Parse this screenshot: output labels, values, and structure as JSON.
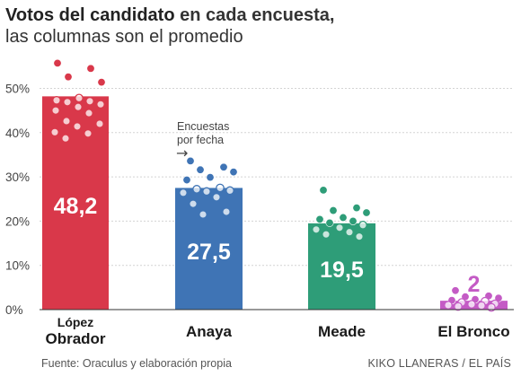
{
  "header": {
    "title_bold": "Votos del candidato",
    "title_rest": " en cada encuesta,",
    "subtitle": "las columnas son el promedio"
  },
  "annotation": {
    "line1": "Encuestas",
    "line2": "por fecha",
    "arrow": "→"
  },
  "footer": {
    "source": "Fuente: Oraculus y elaboración propia",
    "credit": "KIKO LLANERAS / EL PAÍS"
  },
  "chart_data": {
    "type": "bar",
    "title": "Votos del candidato en cada encuesta, las columnas son el promedio",
    "ylim": [
      0,
      55
    ],
    "yticks": [
      0,
      10,
      20,
      30,
      40,
      50
    ],
    "ytick_labels": [
      "0%",
      "10%",
      "20%",
      "30%",
      "40%",
      "50%"
    ],
    "grid": true,
    "categories": [
      "López Obrador",
      "Anaya",
      "Meade",
      "El Bronco"
    ],
    "category_labels": [
      [
        "López",
        "Obrador"
      ],
      [
        "Anaya"
      ],
      [
        "Meade"
      ],
      [
        "El Bronco"
      ]
    ],
    "values": [
      48.2,
      27.5,
      19.5,
      2
    ],
    "value_labels": [
      "48,2",
      "27,5",
      "19,5",
      "2"
    ],
    "colors": [
      "#d9384a",
      "#3f74b5",
      "#2e9d78",
      "#c45bc5"
    ],
    "polls": [
      [
        55.7,
        54.5,
        52.6,
        51.4,
        47.8,
        47.3,
        47.1,
        46.9,
        46.4,
        45.8,
        45.0,
        44.4,
        42.6,
        42.0,
        41.4,
        40.1,
        39.8,
        38.7
      ],
      [
        33.6,
        32.2,
        31.6,
        31.1,
        29.9,
        29.3,
        27.5,
        27.2,
        26.9,
        26.7,
        26.4,
        25.4,
        23.9,
        22.1,
        21.5
      ],
      [
        27.0,
        23.0,
        22.4,
        21.9,
        20.8,
        20.4,
        20.0,
        19.6,
        19.1,
        18.5,
        18.1,
        17.5,
        17.0,
        16.5
      ],
      [
        4.3,
        3.1,
        2.9,
        2.6,
        2.3,
        2.1,
        1.9,
        1.6,
        1.3,
        1.2,
        1.0,
        0.9,
        0.7,
        0.5
      ]
    ]
  }
}
